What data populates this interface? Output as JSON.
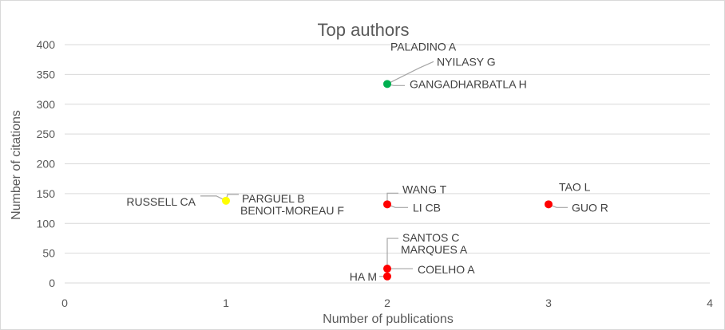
{
  "chart_data": {
    "type": "scatter",
    "title": "Top authors",
    "xlabel": "Number of publications",
    "ylabel": "Number of citations",
    "xlim": [
      0,
      4
    ],
    "ylim": [
      0,
      400
    ],
    "x_ticks": [
      "0",
      "1",
      "2",
      "3",
      "4"
    ],
    "y_ticks": [
      "0",
      "50",
      "100",
      "150",
      "200",
      "250",
      "300",
      "350",
      "400"
    ],
    "grid": "horizontal",
    "legend": "none",
    "points": [
      {
        "x": 2,
        "y": 334,
        "color": "#00b050",
        "labels": [
          "PALADINO A",
          "NYILASY G",
          "GANGADHARBATLA H"
        ]
      },
      {
        "x": 1,
        "y": 138,
        "color": "#ffff00",
        "labels": [
          "RUSSELL CA",
          "PARGUEL B",
          "BENOIT-MOREAU F"
        ]
      },
      {
        "x": 2,
        "y": 132,
        "color": "#ff0000",
        "labels": [
          "WANG T",
          "LI CB"
        ]
      },
      {
        "x": 3,
        "y": 132,
        "color": "#ff0000",
        "labels": [
          "TAO L",
          "GUO R"
        ]
      },
      {
        "x": 2,
        "y": 24,
        "color": "#ff0000",
        "labels": [
          "SANTOS C",
          "MARQUES A",
          "COELHO A"
        ]
      },
      {
        "x": 2,
        "y": 11,
        "color": "#ff0000",
        "labels": [
          "HA M"
        ]
      }
    ]
  }
}
